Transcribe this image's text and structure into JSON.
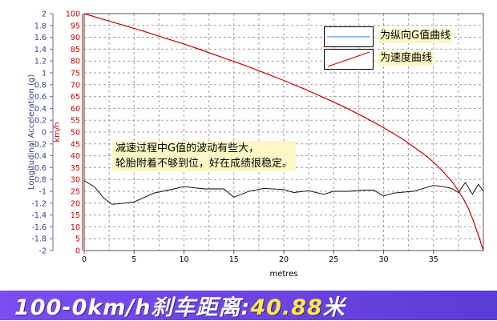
{
  "chart_data": {
    "type": "line",
    "xlabel": "metres",
    "ylabel_left": "Longitudinal Acceleration (g)",
    "ylabel_right": "km/h",
    "xlim": [
      0,
      40
    ],
    "ylim_left": [
      -2,
      2
    ],
    "ylim_right": [
      0,
      100
    ],
    "grid": true,
    "x_ticks": [
      "0",
      "5",
      "10",
      "15",
      "20",
      "25",
      "30",
      "35"
    ],
    "y_left_ticks": [
      "2",
      "1.8",
      "1.6",
      "1.4",
      "1.2",
      "1",
      "0.8",
      "0.6",
      "0.4",
      "0.2",
      "0",
      "-0.2",
      "-0.4",
      "-0.6",
      "-0.8",
      "-1",
      "-1.2",
      "-1.4",
      "-1.6",
      "-1.8",
      "-2"
    ],
    "y_right_ticks": [
      "100",
      "95",
      "90",
      "85",
      "80",
      "75",
      "70",
      "65",
      "60",
      "55",
      "50",
      "45",
      "40",
      "35",
      "30",
      "25",
      "20",
      "15",
      "10",
      "5",
      "0"
    ],
    "legend": [
      "为纵向G值曲线",
      "为速度曲线"
    ],
    "legend_position": "top-right",
    "series": [
      {
        "name": "为纵向G值曲线",
        "axis": "left",
        "color": "#000000",
        "x": [
          0,
          1,
          2,
          2.8,
          4,
          5,
          7,
          9,
          10,
          12,
          14,
          15,
          16.5,
          18,
          20,
          21,
          22.5,
          24,
          25,
          26.5,
          28,
          29,
          30,
          31,
          33,
          35,
          36,
          36.8,
          37.5,
          38.2,
          38.9,
          39.5,
          40
        ],
        "y": [
          -0.82,
          -0.92,
          -1.12,
          -1.22,
          -1.2,
          -1.18,
          -1.03,
          -0.96,
          -0.92,
          -0.96,
          -0.96,
          -1.1,
          -1.0,
          -0.95,
          -0.97,
          -1.02,
          -0.99,
          -1.05,
          -1.0,
          -1.0,
          -0.98,
          -0.98,
          -1.08,
          -1.03,
          -1.0,
          -0.9,
          -0.92,
          -0.95,
          -1.02,
          -0.85,
          -1.05,
          -0.88,
          -1.0
        ]
      },
      {
        "name": "为速度曲线",
        "axis": "right",
        "color": "#cc0000",
        "x": [
          0,
          2,
          4,
          6,
          8,
          10,
          12,
          14,
          16,
          18,
          20,
          22,
          24,
          26,
          28,
          30,
          32,
          34,
          35,
          36,
          37,
          38,
          38.5,
          39,
          39.3,
          39.6,
          39.8,
          40
        ],
        "y": [
          100,
          97.5,
          95,
          92.5,
          89.8,
          87.2,
          84.3,
          81.3,
          78.3,
          75.1,
          71.8,
          68.3,
          64.6,
          60.7,
          56.5,
          51.9,
          46.8,
          40.8,
          37.3,
          33.2,
          28.3,
          21.9,
          17.8,
          12.6,
          8.8,
          5.4,
          2.5,
          0
        ]
      }
    ]
  },
  "annotation": {
    "line1": "减速过程中G值的波动有些大，",
    "line2": "轮胎附着不够到位，好在成绩很稳定。"
  },
  "banner": {
    "prefix": "100-0km/h刹车距离:",
    "value": "40.88",
    "suffix": "米"
  }
}
